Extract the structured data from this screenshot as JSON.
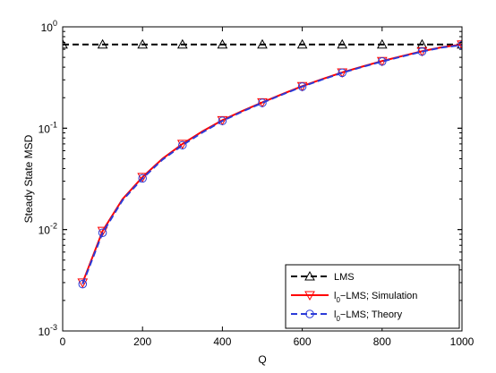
{
  "chart_data": {
    "type": "line",
    "xlabel": "Q",
    "ylabel": "Steady State MSD",
    "xlim": [
      0,
      1000
    ],
    "ylim": [
      0.001,
      1
    ],
    "y_scale": "log",
    "x_ticks": [
      0,
      200,
      400,
      600,
      800,
      1000
    ],
    "x_tick_labels": [
      "0",
      "200",
      "400",
      "600",
      "800",
      "1000"
    ],
    "y_ticks": [
      0.001,
      0.01,
      0.1,
      1
    ],
    "y_tick_labels": [
      {
        "base": "10",
        "exp": "-3"
      },
      {
        "base": "10",
        "exp": "-2"
      },
      {
        "base": "10",
        "exp": "-1"
      },
      {
        "base": "10",
        "exp": "0"
      }
    ],
    "legend_position": "bottom-right",
    "series": [
      {
        "name": "LMS",
        "legend_parts": {
          "main": "LMS"
        },
        "color": "#000000",
        "dash": "dashed",
        "marker": "triangle-up",
        "x": [
          0,
          100,
          200,
          300,
          400,
          500,
          600,
          700,
          800,
          900,
          1000
        ],
        "y": [
          0.67,
          0.67,
          0.67,
          0.67,
          0.67,
          0.67,
          0.67,
          0.67,
          0.67,
          0.67,
          0.67
        ]
      },
      {
        "name": "l0-LMS; Simulation",
        "legend_parts": {
          "main": "l",
          "sub": "0",
          "rest": "−LMS; Simulation"
        },
        "color": "#ff0000",
        "dash": "solid",
        "marker": "triangle-down",
        "x": [
          50,
          100,
          150,
          200,
          250,
          300,
          350,
          400,
          450,
          500,
          550,
          600,
          650,
          700,
          750,
          800,
          850,
          900,
          950,
          1000
        ],
        "y": [
          0.003,
          0.0097,
          0.02,
          0.033,
          0.05,
          0.07,
          0.093,
          0.12,
          0.148,
          0.18,
          0.217,
          0.26,
          0.305,
          0.355,
          0.405,
          0.46,
          0.515,
          0.575,
          0.63,
          0.67
        ],
        "marker_x": [
          50,
          100,
          200,
          300,
          400,
          500,
          600,
          700,
          800,
          900,
          1000
        ],
        "marker_y": [
          0.003,
          0.0097,
          0.033,
          0.07,
          0.12,
          0.18,
          0.26,
          0.355,
          0.46,
          0.575,
          0.67
        ]
      },
      {
        "name": "l0-LMS; Theory",
        "legend_parts": {
          "main": "l",
          "sub": "0",
          "rest": "−LMS; Theory"
        },
        "color": "#2b3bd8",
        "dash": "dashed",
        "marker": "circle",
        "x": [
          50,
          100,
          150,
          200,
          250,
          300,
          350,
          400,
          450,
          500,
          550,
          600,
          650,
          700,
          750,
          800,
          850,
          900,
          950,
          1000
        ],
        "y": [
          0.0029,
          0.0093,
          0.0195,
          0.032,
          0.049,
          0.068,
          0.091,
          0.118,
          0.146,
          0.178,
          0.215,
          0.257,
          0.302,
          0.352,
          0.402,
          0.455,
          0.51,
          0.57,
          0.625,
          0.66
        ],
        "marker_x": [
          50,
          100,
          200,
          300,
          400,
          500,
          600,
          700,
          800,
          900,
          1000
        ],
        "marker_y": [
          0.0029,
          0.0093,
          0.032,
          0.068,
          0.118,
          0.178,
          0.257,
          0.352,
          0.455,
          0.57,
          0.66
        ]
      }
    ]
  }
}
